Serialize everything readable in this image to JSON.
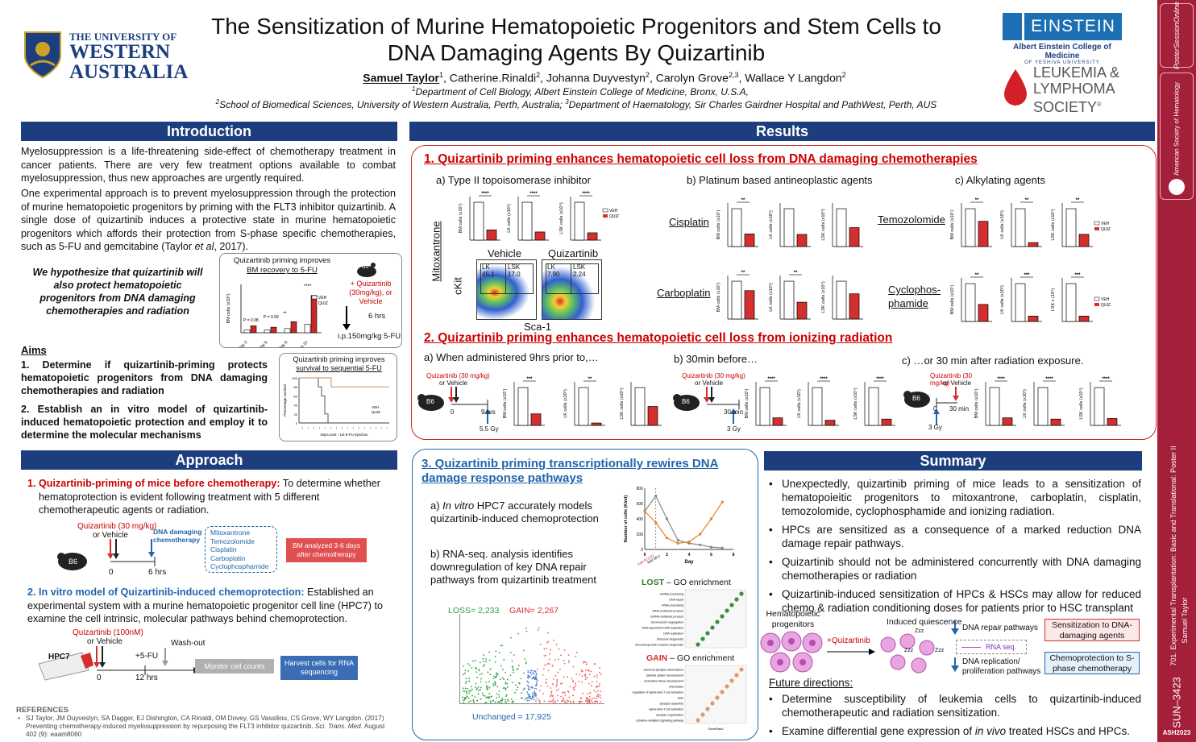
{
  "header": {
    "uwa_line1": "THE UNIVERSITY OF",
    "uwa_line2": "WESTERN",
    "uwa_line3": "AUSTRALIA",
    "title_line1": "The Sensitization of Murine Hematopoietic Progenitors and Stem Cells to",
    "title_line2": "DNA Damaging Agents By Quizartinib",
    "authors": [
      {
        "name": "Samuel Taylor",
        "sup": "1"
      },
      {
        "name": ", Catherine.Rinaldi",
        "sup": "2"
      },
      {
        "name": ", Johanna Duyvestyn",
        "sup": "2"
      },
      {
        "name": ", Carolyn Grove",
        "sup": "2,3"
      },
      {
        "name": ", Wallace Y Langdon",
        "sup": "2"
      }
    ],
    "affil1": "Department of Cell Biology, Albert Einstein College of Medicine, Bronx, U.S.A,",
    "affil2": "School of Biomedical Sciences, University of Western Australia, Perth, Australia; ",
    "affil3": "Department of Haematology, Sir Charles Gairdner Hospital and PathWest, Perth, AUS",
    "einstein": "EINSTEIN",
    "einstein_sub": "Albert Einstein College of Medicine",
    "einstein_sub2": "OF YESHIVA UNIVERSITY",
    "lls1": "LEUKEMIA &",
    "lls2": "LYMPHOMA",
    "lls3": "SOCIETY",
    "lls_reg": "®"
  },
  "sidebar": {
    "poster_link": "PosterSessionOnline",
    "ash": "American Society of Hematology",
    "session": "701. Experimental Transplantation: Basic and Translational: Poster II",
    "presenter": "Samuel Taylor",
    "poster_id": "SUN–3423",
    "meeting": "ASH2023"
  },
  "intro": {
    "heading": "Introduction",
    "p1": "Myelosuppression is a life-threatening side-effect of chemotherapy treatment in cancer patients. There are very few treatment options available to combat myelosuppression, thus new approaches are urgently required.",
    "p2": "One experimental approach is to prevent myelosuppression through the protection of murine hematopoietic progenitors by priming with the FLT3 inhibitor quizartinib. A single dose of quizartinib induces a protective state in murine hematopoietic progenitors which affords their protection from S-phase specific chemotherapies, such as 5-FU and gemcitabine (Taylor ",
    "p2_em": "et al",
    "p2_end": ", 2017).",
    "hypothesis": "We hypothesize that quizartinib will also protect hematopoietic progenitors from DNA damaging chemotherapies and radiation",
    "fig1_title_a": "Quizartinib priming improves",
    "fig1_title_b": "BM recovery to 5-FU",
    "fig1_ylabel": "BM cells (x10⁶)",
    "fig1_legend": [
      "VEH",
      "QUIZ"
    ],
    "fig1_days": [
      "Day 3",
      "Day 6",
      "Day 8",
      "Day 10"
    ],
    "fig1_p1": "P = 0.08",
    "fig1_p2": "P = 0.09",
    "fig1_stars": [
      "**",
      "****",
      "****"
    ],
    "mouse": "B6",
    "quiz_dose": "+ Quizartinib (30mg/kg), or Vehicle",
    "hrs6": "6 hrs",
    "fu": "i.p.150mg/kg 5-FU",
    "fig2_title_a": "Quizartinib priming improves",
    "fig2_title_b": "survival to sequential 5-FU",
    "fig2_ylabel": "Percentage survival",
    "fig2_xlabel": "Days post - 1st 5-FU injection",
    "fig2_legend": [
      "VEH",
      "QUIZ"
    ],
    "fig2_yticks": [
      "0",
      "20",
      "40",
      "60",
      "80",
      "100"
    ],
    "aims_heading": "Aims",
    "aim1": "1. Determine if quizartinib-priming protects hematopoietic progenitors from DNA damaging chemotherapies and radiation",
    "aim2": "2. Establish an in vitro model of quizartinib-induced hematopoietic protection and employ it to determine the molecular mechanisms"
  },
  "approach": {
    "heading": "Approach",
    "item1_num": "1.",
    "item1_red": "Quizartinib-priming of mice before chemotherapy:",
    "item1_text": " To determine whether hematoprotection is evident following treatment with 5 different chemotherapeutic agents or radiation.",
    "diag1_quiz": "Quizartinib (30 mg/kg)",
    "diag1_veh": "or Vehicle",
    "diag1_dna": "DNA damaging chemotherapy",
    "diag1_agents": [
      "Mitoxantrone",
      "Temozolomide",
      "Cisplatin",
      "Carboplatin",
      "Cyclophosphamide"
    ],
    "diag1_t0": "0",
    "diag1_t6": "6 hrs",
    "diag1_bm": "BM analyzed 3-6 days after chemotherapy",
    "mouse": "B6",
    "item2_red": "2. In vitro model of Quizartinib-induced chemoprotection:",
    "item2_text": " Established an experimental system with a murine hematopoietic progenitor cell line (HPC7) to examine the cell intrinsic, molecular pathways behind chemoprotection.",
    "diag2_quiz": "Quizartinib (100nM)",
    "diag2_veh": "or Vehicle",
    "diag2_fu": "+5-FU",
    "diag2_wash": "Wash-out",
    "diag2_hpc7": "HPC7",
    "diag2_t0": "0",
    "diag2_t12": "12 hrs",
    "diag2_monitor": "Monitor cell counts",
    "diag2_harvest": "Harvest cells for RNA sequencing",
    "refs_heading": "REFERENCES",
    "ref1": "SJ Taylor, JM Duyvestyn, SA Dagger, EJ Dishington, CA Rinaldi, OM Dovey, GS Vassiliou, CS Grove, WY Langdon. (2017) Preventing chemotherapy-induced myelosuppression by repurposing the FLT3 inhibitor quizartinib. ",
    "ref1_journal": "Sci. Trans. Med.",
    "ref1_end": " August 402 (9): eaam8060"
  },
  "results": {
    "heading": "Results",
    "s1_title": "1. Quizartinib priming enhances hematopoietic cell loss from DNA damaging chemotherapies",
    "s1_a": "a) Type II topoisomerase inhibitor",
    "s1_b": "b) Platinum based antineoplastic agents",
    "s1_c": "c) Alkylating agents",
    "mitox": "Mitoxantrone",
    "cisplatin": "Cisplatin",
    "carboplatin": "Carboplatin",
    "temozolomide": "Temozolomide",
    "cyclo1": "Cyclophos-",
    "cyclo2": "phamide",
    "vehicle": "Vehicle",
    "quizartinib": "Quizartinib",
    "flow_ckit": "cKit",
    "flow_sca": "Sca-1",
    "flow_veh_lk": "LK 45.1",
    "flow_veh_lsk": "LSK 17.0",
    "flow_quiz_lk": "LK 7.90",
    "flow_quiz_lsk": "LSK 2.24",
    "ylab_bm": "BM cells (x10⁷)",
    "ylab_lk": "LK cells (x10⁵)",
    "ylab_lsk": "LSK cells (x10⁴)",
    "ylab_lsk2": "LSK x (10⁴)",
    "legend": [
      "VEH",
      "QUIZ"
    ],
    "s2_title": "2. Quizartinib priming enhances hematopoietic cell loss from ionizing radiation",
    "s2_a": "a) When administered 9hrs prior to,…",
    "s2_b": "b) 30min before…",
    "s2_c": "c) …or 30 min after radiation exposure.",
    "rad_quiz": "Quizartinib (30 mg/kg)",
    "rad_veh": "or Vehicle",
    "rad_t0": "0",
    "rad_9hrs": "9 hrs",
    "rad_30min": "30 min",
    "rad_55": "5.5 Gy",
    "rad_3": "3 Gy",
    "mouse": "B6",
    "s3_title": "3. Quizartinib priming transcriptionally rewires DNA damage response pathways",
    "s3_a_pre": "a) ",
    "s3_a_em": "In vitro",
    "s3_a": " HPC7 accurately models quizartinib-induced chemoprotection",
    "s3_b": "b) RNA-seq. analysis identifies downregulation of key DNA repair pathways from quizartinib treatment",
    "kin_ylabel": "Number of cells (K/ml)",
    "kin_xlabel": "Day",
    "kin_addquiz": "Add AC220",
    "kin_add5fu": "Add 5FU",
    "volcano_loss": "LOSS= 2,233",
    "volcano_gain": "GAIN= 2,267",
    "volcano_unch": "Unchanged = 17,925",
    "lost_title": "LOST",
    "lost_rest": " – GO enrichment",
    "gain_title": "GAIN",
    "gain_rest": " – GO enrichment",
    "lost_terms": [
      "ncRNA processing",
      "DNA repair",
      "rRNA processing",
      "rRNA metabolic process",
      "ncRNA metabolic process",
      "chromosome segregation",
      "DNA-dependent DNA replication",
      "DNA replication",
      "ribosome biogenesis",
      "ribonucleoprotein complex biogenesis"
    ],
    "gain_terms": [
      "chemical synaptic transmission",
      "skeletal system development",
      "connective tissue development",
      "chemotaxis",
      "regulation of alpha-beta T cell activation",
      "taxis",
      "synapse assembly",
      "alpha-beta T cell activation",
      "synapse organization",
      "cytokine-mediated signaling pathway"
    ],
    "go_xlabel": "GeneRatio"
  },
  "summary": {
    "heading": "Summary",
    "bullets": [
      "Unexpectedly, quizartinib priming of mice leads to a sensitization of hematopoieitic progenitors to mitoxantrone, carboplatin, cisplatin, temozolomide, cyclophosphamide and ionizing radiation.",
      "HPCs are sensitized as a consequence of a marked reduction DNA damage repair pathways.",
      "Quizartinib should not be administered concurrently with DNA damaging chemotherapies or radiation",
      "Quizartinib-induced sensitization of HPCs & HSCs may allow for reduced chemo & radiation conditioning doses for patients prior to HSC transplant"
    ],
    "hp": "Hematopoietic progenitors",
    "plusquiz": "+Quizartinib",
    "iq": "Induced quiescence",
    "zzz": "Zzz",
    "dna_rep": "DNA repair pathways",
    "rnaseq": "RNA seq.",
    "dna_repl": "DNA replication/ proliferation pathways",
    "sens": "Sensitization to DNA-damaging agents",
    "chemo": "Chemoprotection to S-phase chemotherapy",
    "future": "Future directions:",
    "f1": "Determine susceptibility of leukemia cells to quizartinib-induced chemotherapeutic and radiation sensitization.",
    "f2_pre": "Examine differential gene expression of ",
    "f2_em": "in vivo",
    "f2_end": " treated HSCs and HPCs."
  },
  "chart_data": [
    {
      "type": "bar",
      "title": "Quizartinib priming improves BM recovery to 5-FU",
      "ylabel": "BM cells (x10⁶)",
      "categories": [
        "Day 3",
        "Day 6",
        "Day 8",
        "Day 10"
      ],
      "series": [
        {
          "name": "VEH",
          "values": [
            2,
            2,
            3,
            6
          ]
        },
        {
          "name": "QUIZ",
          "values": [
            5,
            4,
            8,
            27
          ]
        }
      ],
      "ylim": [
        0,
        35
      ]
    },
    {
      "type": "line",
      "title": "Quizartinib priming improves survival to sequential 5-FU",
      "ylabel": "Percentage survival",
      "xlabel": "Days post - 1st 5-FU injection",
      "series": [
        {
          "name": "VEH",
          "x": [
            0,
            10,
            12,
            14,
            16,
            18
          ],
          "y": [
            100,
            100,
            80,
            60,
            20,
            0
          ]
        },
        {
          "name": "QUIZ",
          "x": [
            0,
            12,
            20,
            40,
            56
          ],
          "y": [
            100,
            100,
            80,
            80,
            80
          ]
        }
      ],
      "ylim": [
        0,
        100
      ]
    },
    {
      "type": "line",
      "xlabel": "Day",
      "ylabel": "Number of cells (K/ml)",
      "x": [
        0,
        1,
        2,
        3,
        4,
        5,
        6,
        7
      ],
      "ylim": [
        0,
        800
      ],
      "series": [
        {
          "values": [
            500,
            700,
            400,
            120,
            80,
            60,
            30,
            20
          ]
        },
        {
          "values": [
            500,
            350,
            150,
            80,
            100,
            200,
            400,
            620
          ]
        }
      ]
    },
    {
      "type": "bar",
      "categories": [
        "VEH",
        "QUIZ"
      ],
      "series": [
        {
          "values": [
            1.3,
            0.35
          ]
        },
        {
          "values": [
            14,
            3
          ]
        },
        {
          "values": [
            130,
            25
          ]
        }
      ]
    }
  ]
}
